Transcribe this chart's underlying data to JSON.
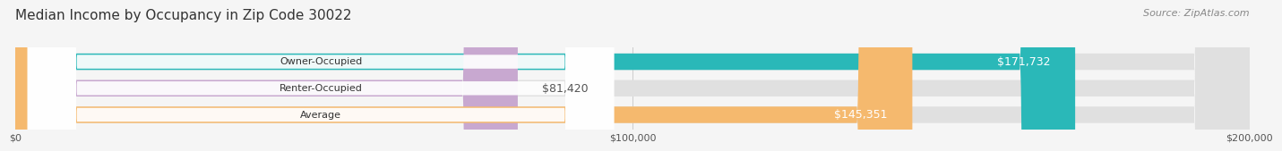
{
  "title": "Median Income by Occupancy in Zip Code 30022",
  "source": "Source: ZipAtlas.com",
  "categories": [
    "Owner-Occupied",
    "Renter-Occupied",
    "Average"
  ],
  "values": [
    171732,
    81420,
    145351
  ],
  "labels": [
    "$171,732",
    "$81,420",
    "$145,351"
  ],
  "bar_colors": [
    "#2ab8b8",
    "#c8a8d0",
    "#f5b96e"
  ],
  "label_colors": [
    "#ffffff",
    "#555555",
    "#ffffff"
  ],
  "xlim": [
    0,
    200000
  ],
  "xticks": [
    0,
    100000,
    200000
  ],
  "xticklabels": [
    "$0",
    "$100,000",
    "$200,000"
  ],
  "background_color": "#f5f5f5",
  "bar_background_color": "#e0e0e0",
  "title_fontsize": 11,
  "source_fontsize": 8,
  "label_fontsize": 9,
  "tick_fontsize": 8,
  "category_fontsize": 8
}
